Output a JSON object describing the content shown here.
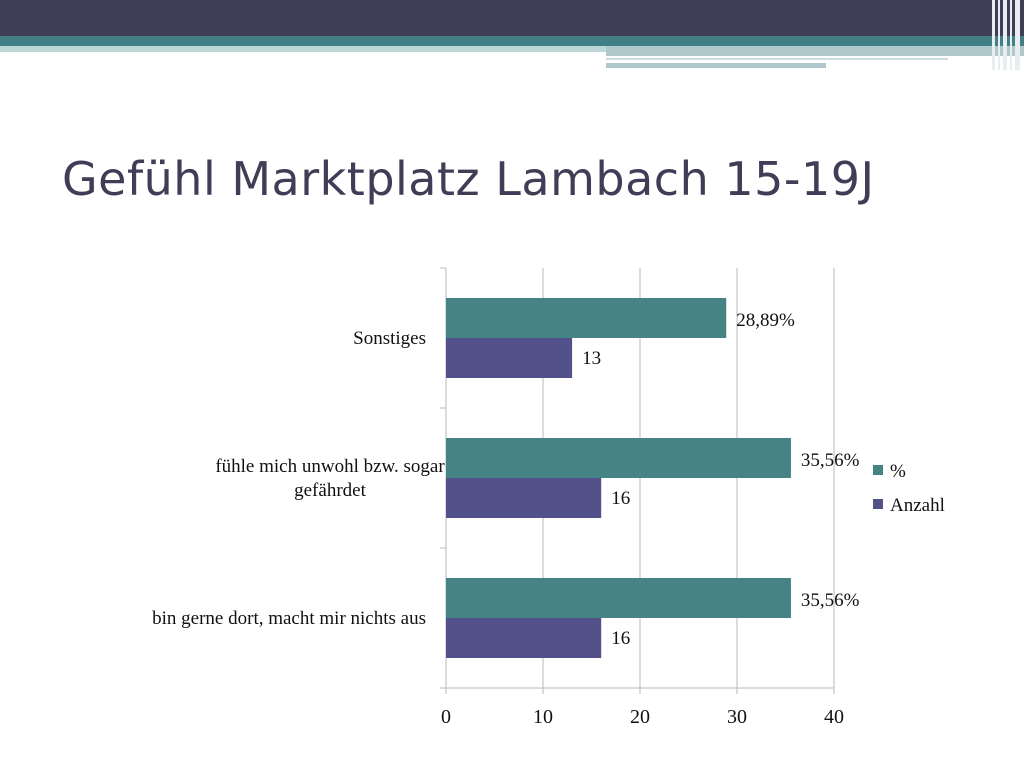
{
  "slide": {
    "title": "Gefühl Marktplatz Lambach 15-19J"
  },
  "colors": {
    "header_dark": "#403e57",
    "header_teal": "#3f7f85",
    "series_percent": "#458384",
    "series_count": "#525189",
    "grid": "#b8b8b8",
    "title": "#403e57"
  },
  "chart_data": {
    "type": "bar",
    "orientation": "horizontal",
    "title": "",
    "xlabel": "",
    "ylabel": "",
    "categories": [
      "bin gerne dort, macht mir nichts aus",
      "fühle mich unwohl bzw. sogar gefährdet",
      "Sonstiges"
    ],
    "series": [
      {
        "name": "%",
        "values": [
          35.56,
          35.56,
          28.89
        ],
        "labels": [
          "35,56%",
          "35,56%",
          "28,89%"
        ]
      },
      {
        "name": "Anzahl",
        "values": [
          16,
          16,
          13
        ],
        "labels": [
          "16",
          "16",
          "13"
        ]
      }
    ],
    "xlim": [
      0,
      40
    ],
    "xticks": [
      "0",
      "10",
      "20",
      "30",
      "40"
    ],
    "grid": "vertical",
    "legend_position": "right"
  }
}
